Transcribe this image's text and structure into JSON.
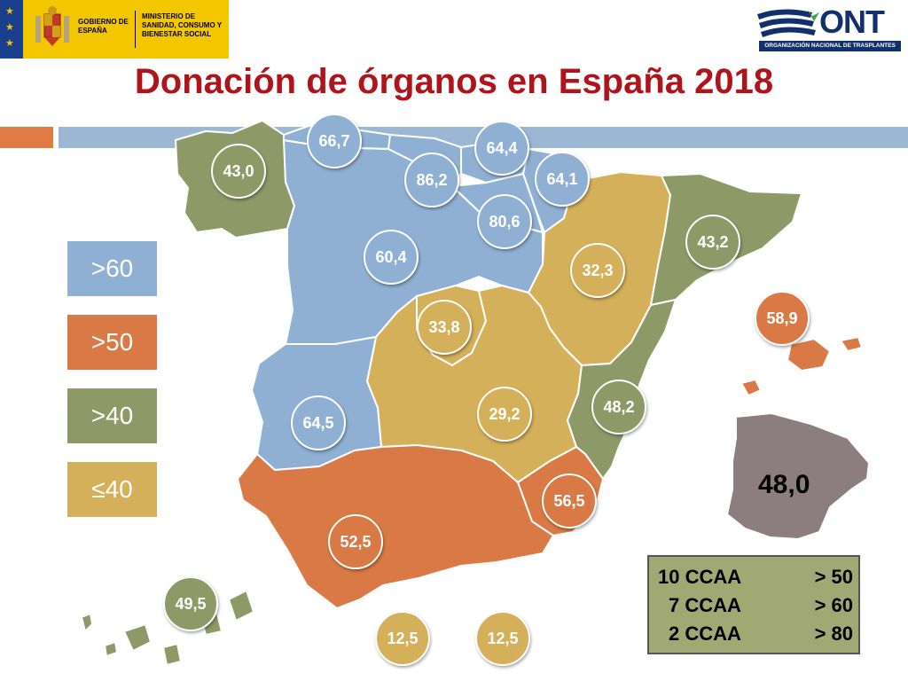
{
  "header": {
    "gov_line1": "GOBIERNO DE ESPAÑA",
    "ministry": "MINISTERIO DE SANIDAD, CONSUMO Y BIENESTAR SOCIAL",
    "ont_logo": "ONT",
    "ont_full": "ORGANIZACIÓN NACIONAL DE TRASPLANTES"
  },
  "title": "Donación de órganos en España 2018",
  "legend": [
    {
      "label": ">60",
      "color": "#8fb0d2"
    },
    {
      "label": ">50",
      "color": "#d97a46"
    },
    {
      "label": ">40",
      "color": "#8e9968"
    },
    {
      "label": "≤40",
      "color": "#d4b05a"
    }
  ],
  "regions": {
    "galicia": "43,0",
    "asturias": "66,7",
    "cantabria": "86,2",
    "pais_vasco": "64,4",
    "navarra": "64,1",
    "la_rioja": "80,6",
    "castilla_leon": "60,4",
    "aragon": "32,3",
    "cataluna": "43,2",
    "baleares": "58,9",
    "madrid": "33,8",
    "castilla_la_mancha": "29,2",
    "extremadura": "64,5",
    "valencia": "48,2",
    "murcia": "56,5",
    "andalucia": "52,5",
    "canarias": "49,5",
    "ceuta": "12,5",
    "melilla": "12,5"
  },
  "national": "48,0",
  "summary": [
    {
      "left": "10 CCAA",
      "right": "> 50"
    },
    {
      "left": "7 CCAA",
      "right": "> 60"
    },
    {
      "left": "2 CCAA",
      "right": "> 80"
    }
  ],
  "colors": {
    "title": "#b0141b",
    "blue": "#8fb0d2",
    "orange": "#d97a46",
    "olive": "#8e9968",
    "gold": "#d4b05a",
    "national_map": "#8c7e80",
    "summary_bg": "#a0a974"
  }
}
